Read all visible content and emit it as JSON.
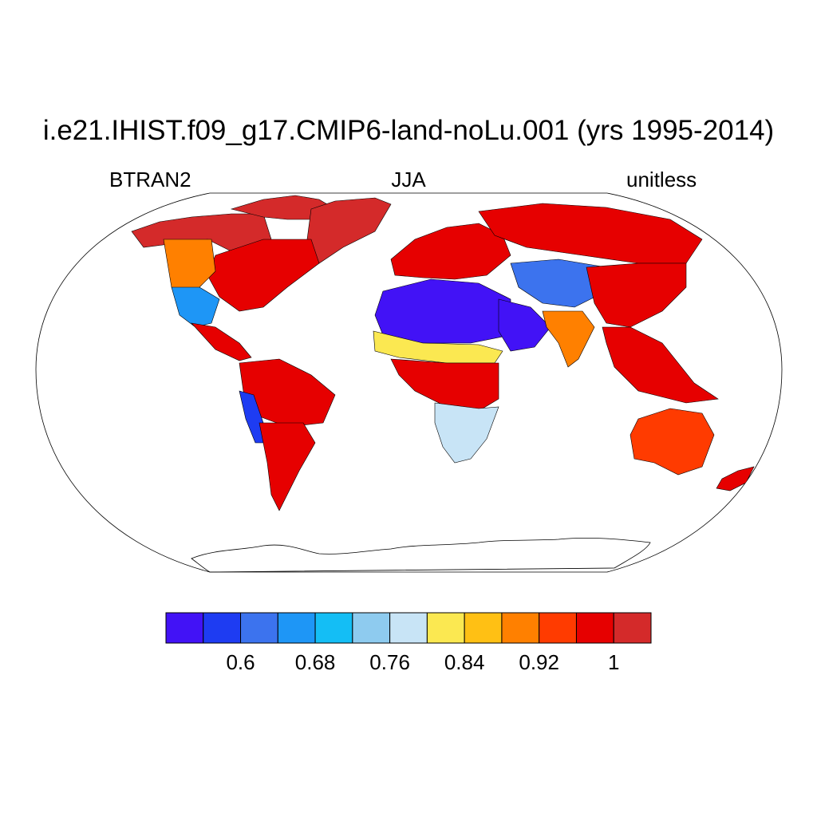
{
  "title": "i.e21.IHIST.f09_g17.CMIP6-land-noLu.001 (yrs 1995-2014)",
  "subtitle_left": "BTRAN2",
  "subtitle_center": "JJA",
  "subtitle_right": "unitless",
  "map": {
    "projection": "Robinson",
    "variable": "BTRAN2",
    "season": "JJA",
    "regions": [
      {
        "name": "Alaska / northern Canada",
        "level": 12
      },
      {
        "name": "Canadian Arctic islands",
        "level": 12
      },
      {
        "name": "Greenland",
        "level": 12
      },
      {
        "name": "Eastern North America",
        "level": 11
      },
      {
        "name": "Western North America",
        "level": 9
      },
      {
        "name": "Southwest US / Mexico",
        "level": 3
      },
      {
        "name": "Central America",
        "level": 11
      },
      {
        "name": "Amazon",
        "level": 11
      },
      {
        "name": "Peru / Atacama coast",
        "level": 1
      },
      {
        "name": "Southern South America",
        "level": 11
      },
      {
        "name": "Europe",
        "level": 11
      },
      {
        "name": "Siberia",
        "level": 11
      },
      {
        "name": "Sahara",
        "level": 0
      },
      {
        "name": "Sahel",
        "level": 7
      },
      {
        "name": "Central Africa",
        "level": 11
      },
      {
        "name": "Southern Africa",
        "level": 6
      },
      {
        "name": "Arabian Peninsula",
        "level": 0
      },
      {
        "name": "Central Asia",
        "level": 2
      },
      {
        "name": "India",
        "level": 9
      },
      {
        "name": "China / East Asia",
        "level": 11
      },
      {
        "name": "Southeast Asia",
        "level": 11
      },
      {
        "name": "Australia",
        "level": 10
      },
      {
        "name": "New Zealand",
        "level": 11
      }
    ]
  },
  "colorbar": {
    "colors": [
      "#4212f6",
      "#1e3cf2",
      "#3c73ee",
      "#1e96f6",
      "#14bef5",
      "#8ecbef",
      "#c8e4f6",
      "#fbe851",
      "#ffc014",
      "#ff8000",
      "#ff3b00",
      "#e60000",
      "#d42a2a"
    ],
    "tick_labels": [
      "0.6",
      "0.68",
      "0.76",
      "0.84",
      "0.92",
      "1"
    ],
    "tick_boundary_index": [
      2,
      4,
      6,
      8,
      10,
      12
    ]
  }
}
